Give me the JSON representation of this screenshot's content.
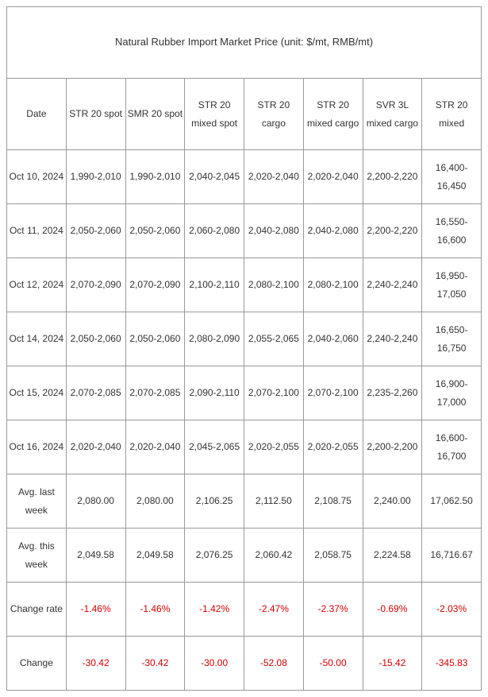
{
  "title": "Natural Rubber Import Market Price (unit: $/mt, RMB/mt)",
  "columns": [
    "Date",
    "STR 20 spot",
    "SMR 20 spot",
    "STR 20 mixed spot",
    "STR 20 cargo",
    "STR 20 mixed cargo",
    "SVR 3L mixed cargo",
    "STR 20 mixed"
  ],
  "rows": [
    {
      "date": "Oct 10, 2024",
      "cells": [
        "1,990-2,010",
        "1,990-2,010",
        "2,040-2,045",
        "2,020-2,040",
        "2,020-2,040",
        "2,200-2,220",
        "16,400-16,450"
      ]
    },
    {
      "date": "Oct 11, 2024",
      "cells": [
        "2,050-2,060",
        "2,050-2,060",
        "2,060-2,080",
        "2,040-2,080",
        "2,040-2,080",
        "2,200-2,220",
        "16,550-16,600"
      ]
    },
    {
      "date": "Oct 12, 2024",
      "cells": [
        "2,070-2,090",
        "2,070-2,090",
        "2,100-2,110",
        "2,080-2,100",
        "2,080-2,100",
        "2,240-2,240",
        "16,950-17,050"
      ]
    },
    {
      "date": "Oct 14, 2024",
      "cells": [
        "2,050-2,060",
        "2,050-2,060",
        "2,080-2,090",
        "2,055-2,065",
        "2,040-2,060",
        "2,240-2,240",
        "16,650-16,750"
      ]
    },
    {
      "date": "Oct 15, 2024",
      "cells": [
        "2,070-2,085",
        "2,070-2,085",
        "2,090-2,110",
        "2,070-2,100",
        "2,070-2,100",
        "2,235-2,260",
        "16,900-17,000"
      ]
    },
    {
      "date": "Oct 16, 2024",
      "cells": [
        "2,020-2,040",
        "2,020-2,040",
        "2,045-2,065",
        "2,020-2,055",
        "2,020-2,055",
        "2,200-2,200",
        "16,600-16,700"
      ]
    },
    {
      "date": "Avg. last week",
      "cells": [
        "2,080.00",
        "2,080.00",
        "2,106.25",
        "2,112.50",
        "2,108.75",
        "2,240.00",
        "17,062.50"
      ]
    },
    {
      "date": "Avg. this week",
      "cells": [
        "2,049.58",
        "2,049.58",
        "2,076.25",
        "2,060.42",
        "2,058.75",
        "2,224.58",
        "16,716.67"
      ]
    },
    {
      "date": "Change rate",
      "cells": [
        "-1.46%",
        "-1.46%",
        "-1.42%",
        "-2.47%",
        "-2.37%",
        "-0.69%",
        "-2.03%"
      ],
      "neg": true
    },
    {
      "date": "Change",
      "cells": [
        "-30.42",
        "-30.42",
        "-30.00",
        "-52.08",
        "-50.00",
        "-15.42",
        "-345.83"
      ],
      "neg": true
    }
  ],
  "colors": {
    "text": "#333333",
    "neg": "#d40000",
    "border": "#999999",
    "bg": "#ffffff"
  }
}
